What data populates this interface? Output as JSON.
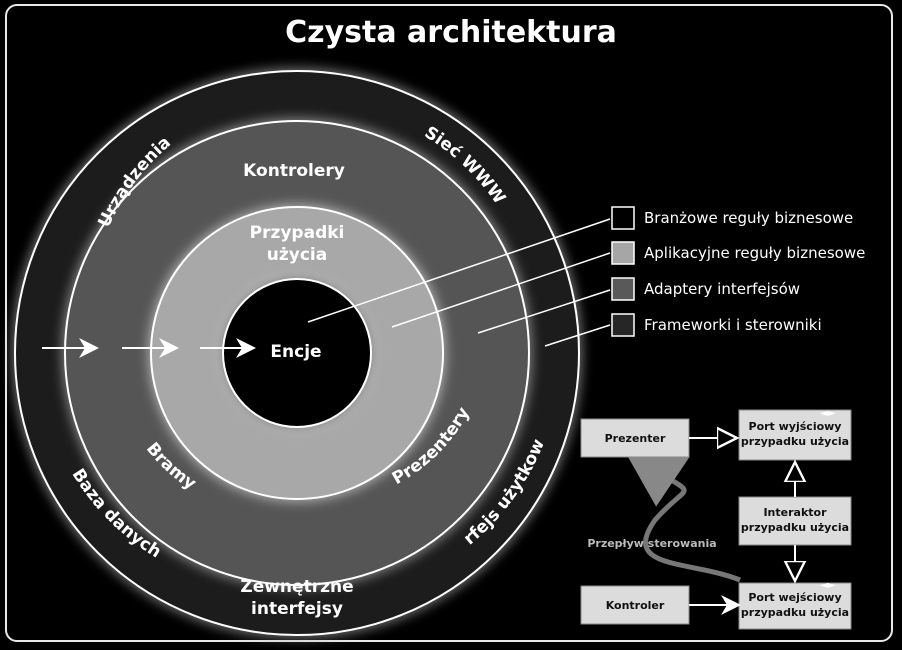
{
  "title": "Czysta architektura",
  "rings": {
    "outer_left_top": "Urządzenia",
    "outer_right_top": "Sieć WWW",
    "outer_left_bottom": "Baza danych",
    "outer_right_bottom": "Interfejs użytkownika",
    "outer_bottom": "Zewnętrzne interfejsy",
    "adapters_top": "Kontrolery",
    "adapters_left": "Bramy",
    "adapters_right": "Prezentery",
    "usecases_top": "Przypadki użycia",
    "core": "Encje"
  },
  "legend": [
    {
      "label": "Branżowe reguły biznesowe",
      "color": "#000000"
    },
    {
      "label": "Aplikacyjne reguły biznesowe",
      "color": "#a6a6a6"
    },
    {
      "label": "Adaptery interfejsów",
      "color": "#595959"
    },
    {
      "label": "Frameworki i sterowniki",
      "color": "#262626"
    }
  ],
  "flow_diagram": {
    "presenter": "Prezenter",
    "output_port": "Port wyjściowy przypadku użycia",
    "interactor": "Interaktor przypadku użycia",
    "controller": "Kontroler",
    "input_port": "Port wejściowy przypadku użycia",
    "flow_label": "Przepływ sterowania"
  }
}
